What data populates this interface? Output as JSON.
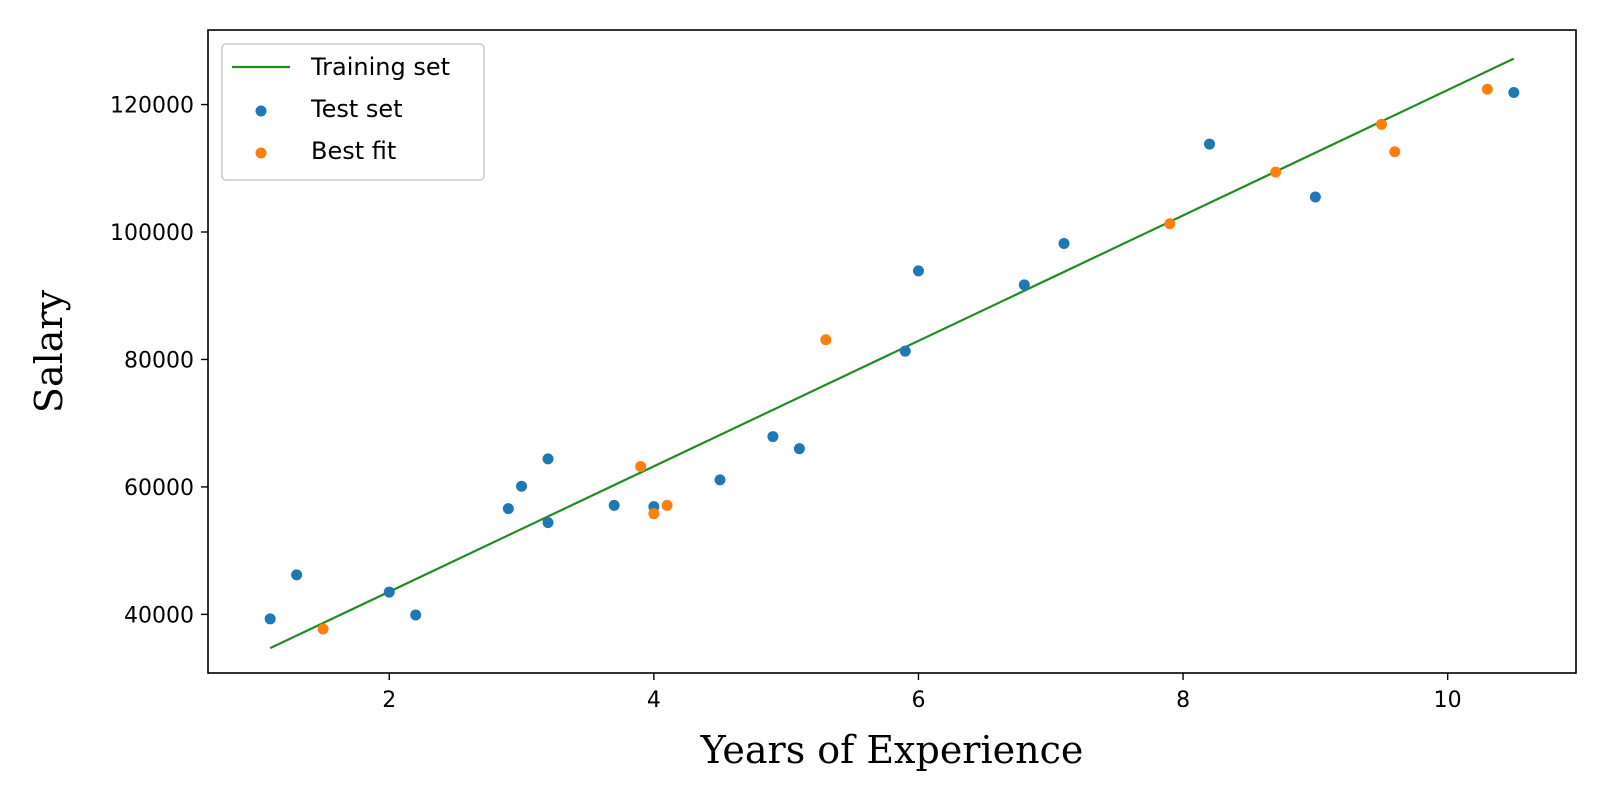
{
  "chart_data": {
    "type": "scatter",
    "title": "",
    "xlabel": "Years of Experience",
    "ylabel": "Salary",
    "xlim": [
      0.63,
      10.97
    ],
    "ylim": [
      30800,
      131700
    ],
    "xticks": [
      2,
      4,
      6,
      8,
      10
    ],
    "yticks": [
      40000,
      60000,
      80000,
      100000,
      120000
    ],
    "grid": false,
    "legend_position": "top-left",
    "series": [
      {
        "name": "Training set",
        "kind": "line",
        "color": "#228b22",
        "x": [
          1.1,
          10.5
        ],
        "y": [
          34700,
          127200
        ]
      },
      {
        "name": "Test set",
        "kind": "scatter",
        "color": "#1f77b4",
        "x": [
          1.1,
          1.3,
          2.0,
          2.2,
          2.9,
          3.0,
          3.2,
          3.2,
          3.7,
          4.0,
          4.5,
          4.9,
          5.1,
          5.9,
          6.0,
          6.8,
          7.1,
          8.2,
          9.0,
          10.5
        ],
        "y": [
          39300,
          46200,
          43500,
          39900,
          56600,
          60100,
          54400,
          64400,
          57100,
          56900,
          61100,
          67900,
          66000,
          81300,
          93900,
          91700,
          98200,
          113800,
          105500,
          121900
        ]
      },
      {
        "name": "Best fit",
        "kind": "scatter",
        "color": "#ff7f0e",
        "x": [
          1.5,
          3.9,
          4.0,
          4.1,
          5.3,
          7.9,
          8.7,
          9.5,
          9.6,
          10.3
        ],
        "y": [
          37700,
          63200,
          55800,
          57100,
          83100,
          101300,
          109400,
          116900,
          112600,
          122400
        ]
      }
    ]
  }
}
